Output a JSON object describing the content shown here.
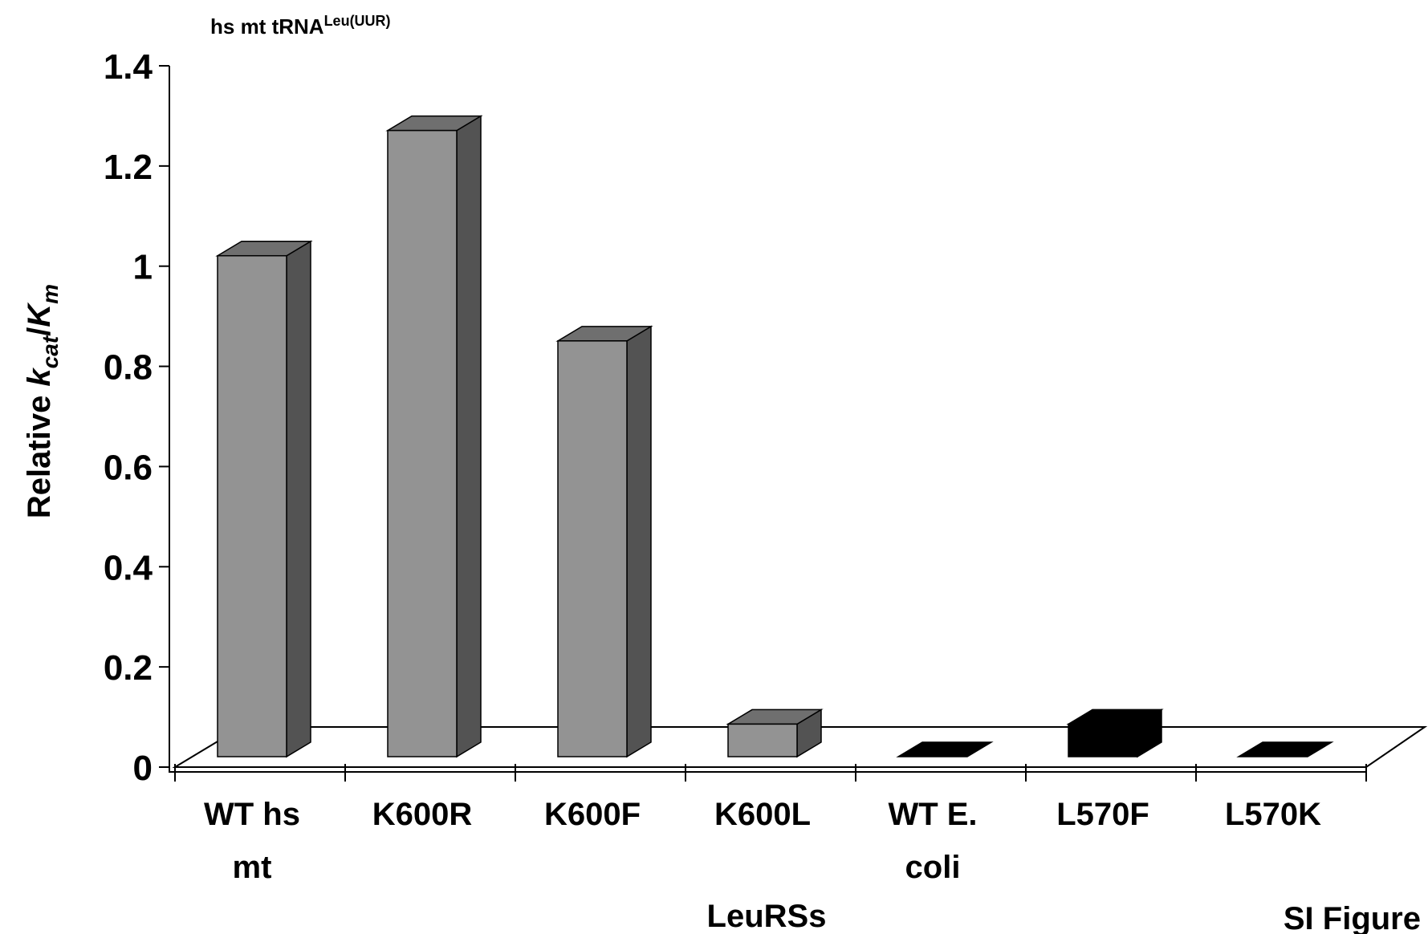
{
  "chart_data": {
    "type": "bar",
    "style": "3d",
    "title": "hs mt tRNA",
    "title_superscript": "Leu(UUR)",
    "ylabel": {
      "prefix": "Relative ",
      "k": "k",
      "k_sub": "cat",
      "slash": "/",
      "K": "K",
      "K_sub": "m"
    },
    "xlabel": "LeuRSs",
    "ylim": [
      0,
      1.4
    ],
    "yticks": [
      "0",
      "0.2",
      "0.4",
      "0.6",
      "0.8",
      "1",
      "1.2",
      "1.4"
    ],
    "grid": false,
    "categories": [
      [
        "WT hs",
        "mt"
      ],
      [
        "K600R"
      ],
      [
        "K600F"
      ],
      [
        "K600L"
      ],
      [
        "WT E.",
        "coli"
      ],
      [
        "L570F"
      ],
      [
        "L570K"
      ]
    ],
    "values": [
      1.0,
      1.25,
      0.83,
      0.065,
      0.0,
      0.065,
      0.0
    ],
    "bar_colors": [
      "#939393",
      "#939393",
      "#939393",
      "#939393",
      "#000000",
      "#000000",
      "#000000"
    ],
    "footnote": "SI Figure"
  },
  "colors": {
    "bar_front": "#939393",
    "bar_side": "#535353",
    "bar_top": "#6f6f6f",
    "black": "#000000"
  }
}
